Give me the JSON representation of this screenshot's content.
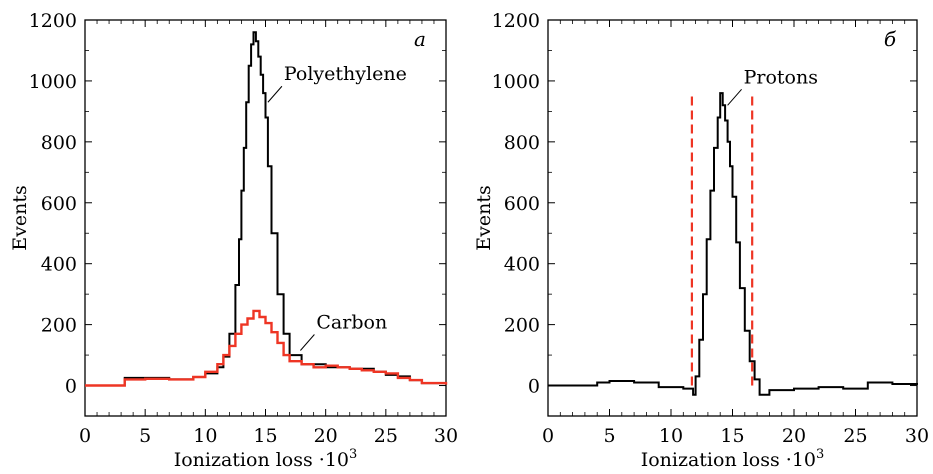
{
  "chart_data": [
    {
      "panel": "а",
      "type": "line",
      "step": true,
      "xlabel": "Ionization loss ·10",
      "xlabel_sup": "3",
      "ylabel": "Events",
      "xlim": [
        0,
        30
      ],
      "ylim": [
        -100,
        1200
      ],
      "xticks": [
        0,
        5,
        10,
        15,
        20,
        25,
        30
      ],
      "yticks": [
        0,
        200,
        400,
        600,
        800,
        1000,
        1200
      ],
      "grid": false,
      "series": [
        {
          "name": "Polyethylene",
          "color": "#000000",
          "x": [
            0,
            3,
            3.3,
            5,
            7,
            9,
            10,
            11,
            11.5,
            12,
            12.5,
            12.8,
            13,
            13.2,
            13.4,
            13.6,
            13.8,
            14,
            14.2,
            14.4,
            14.6,
            14.8,
            15,
            15.2,
            15.5,
            16,
            16.5,
            17,
            18,
            20,
            22,
            24,
            25,
            26,
            27,
            28,
            30
          ],
          "values": [
            0,
            0,
            25,
            25,
            20,
            28,
            40,
            60,
            95,
            170,
            330,
            480,
            640,
            780,
            930,
            1050,
            1120,
            1160,
            1130,
            1080,
            1020,
            960,
            880,
            720,
            500,
            300,
            170,
            100,
            70,
            60,
            55,
            45,
            35,
            30,
            18,
            8,
            3
          ]
        },
        {
          "name": "Carbon",
          "color": "#ee3524",
          "x": [
            0,
            3,
            3.3,
            5,
            7,
            9,
            10,
            11,
            11.5,
            12,
            12.5,
            13,
            13.5,
            14,
            14.5,
            15,
            15.5,
            16,
            16.5,
            17,
            18,
            19,
            20,
            21,
            22,
            23,
            24,
            25,
            26,
            27,
            28,
            30
          ],
          "values": [
            0,
            0,
            20,
            22,
            20,
            28,
            45,
            70,
            100,
            130,
            170,
            200,
            220,
            245,
            225,
            205,
            175,
            140,
            100,
            80,
            70,
            60,
            65,
            60,
            55,
            50,
            45,
            40,
            25,
            18,
            8,
            3
          ]
        }
      ],
      "annotations": [
        {
          "text": "Polyethylene",
          "x_data": 15.2,
          "y_data": 930
        },
        {
          "text": "Carbon",
          "x_data": 17.9,
          "y_data": 115
        }
      ]
    },
    {
      "panel": "б",
      "type": "line",
      "step": true,
      "xlabel": "Ionization loss ·10",
      "xlabel_sup": "3",
      "ylabel": "Events",
      "xlim": [
        0,
        30
      ],
      "ylim": [
        -100,
        1200
      ],
      "xticks": [
        0,
        5,
        10,
        15,
        20,
        25,
        30
      ],
      "yticks": [
        0,
        200,
        400,
        600,
        800,
        1000,
        1200
      ],
      "grid": false,
      "series": [
        {
          "name": "Protons",
          "color": "#000000",
          "x": [
            0,
            3,
            4,
            5,
            7,
            9,
            11,
            11.8,
            12,
            12.3,
            12.6,
            12.9,
            13.2,
            13.5,
            13.8,
            14,
            14.2,
            14.4,
            14.6,
            14.8,
            15,
            15.3,
            15.6,
            16,
            16.4,
            16.8,
            17.2,
            18,
            20,
            22,
            24,
            26,
            28,
            30
          ],
          "values": [
            0,
            0,
            10,
            15,
            10,
            -5,
            -10,
            -30,
            30,
            150,
            300,
            480,
            640,
            780,
            880,
            960,
            920,
            870,
            800,
            720,
            620,
            470,
            320,
            180,
            80,
            20,
            -30,
            -15,
            -10,
            -5,
            -10,
            10,
            5,
            2
          ]
        }
      ],
      "cut_lines": {
        "color": "#ee3524",
        "x": [
          11.7,
          16.6
        ],
        "y_range": [
          0,
          960
        ]
      },
      "annotations": [
        {
          "text": "Protons",
          "x_data": 14.6,
          "y_data": 920
        }
      ]
    }
  ]
}
